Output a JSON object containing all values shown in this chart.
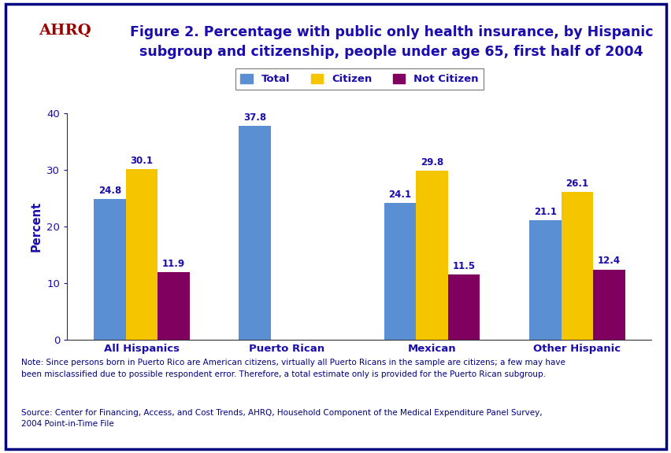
{
  "title_line1": "Figure 2. Percentage with public only health insurance, by Hispanic",
  "title_line2": "subgroup and citizenship, people under age 65, first half of 2004",
  "categories": [
    "All Hispanics",
    "Puerto Rican",
    "Mexican",
    "Other Hispanic"
  ],
  "series": {
    "Total": [
      24.8,
      37.8,
      24.1,
      21.1
    ],
    "Citizen": [
      30.1,
      null,
      29.8,
      26.1
    ],
    "Not Citizen": [
      11.9,
      null,
      11.5,
      12.4
    ]
  },
  "colors": {
    "Total": "#5B8FD4",
    "Citizen": "#F5C500",
    "Not Citizen": "#800060"
  },
  "ylabel": "Percent",
  "ylim": [
    0,
    40
  ],
  "yticks": [
    0,
    10,
    20,
    30,
    40
  ],
  "legend_labels": [
    "Total",
    "Citizen",
    "Not Citizen"
  ],
  "note_line1": "Note: Since persons born in Puerto Rico are American citizens, virtually all Puerto Ricans in the sample are citizens; a few may have",
  "note_line2": "been misclassified due to possible respondent error. Therefore, a total estimate only is provided for the Puerto Rican subgroup.",
  "source_line1": "Source: Center for Financing, Access, and Cost Trends, AHRQ, Household Component of the Medical Expenditure Panel Survey,",
  "source_line2": "2004 Point-in-Time File",
  "background_color": "#FFFFFF",
  "bar_width": 0.22,
  "title_color": "#1A0DAB",
  "axis_color": "#333333",
  "label_color": "#1A0DAB",
  "note_color": "#000080",
  "border_color": "#000080",
  "separator_color": "#000080",
  "header_logo_bg": "#2E75B6",
  "ahrq_text_color": "#800000"
}
